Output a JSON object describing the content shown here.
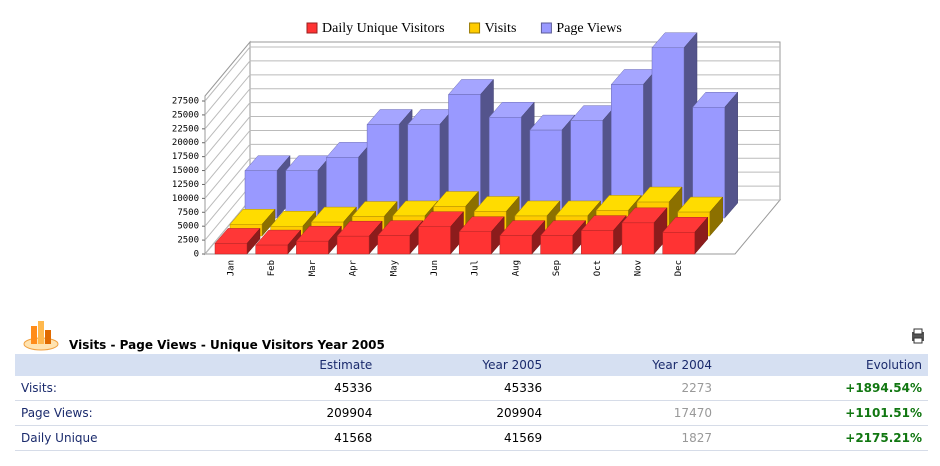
{
  "chart_data": {
    "type": "bar3d",
    "categories": [
      "Jan",
      "Feb",
      "Mar",
      "Apr",
      "May",
      "Jun",
      "Jul",
      "Aug",
      "Sep",
      "Oct",
      "Nov",
      "Dec"
    ],
    "series": [
      {
        "name": "Daily Unique Visitors",
        "color": "#ff3333",
        "values": [
          1900,
          1600,
          2300,
          3200,
          3300,
          4900,
          4000,
          3300,
          3300,
          4200,
          5600,
          3900
        ]
      },
      {
        "name": "Visits",
        "color": "#ffcc00",
        "values": [
          2100,
          1750,
          2500,
          3500,
          3600,
          5300,
          4400,
          3600,
          3600,
          4600,
          6100,
          4300
        ]
      },
      {
        "name": "Page Views",
        "color": "#9999ff",
        "values": [
          8500,
          8500,
          10900,
          16800,
          16800,
          22200,
          18100,
          15800,
          17500,
          24000,
          30600,
          19900
        ]
      }
    ],
    "ylim": [
      0,
      27500
    ],
    "yticks": [
      0,
      2500,
      5000,
      7500,
      10000,
      12500,
      15000,
      17500,
      20000,
      22500,
      25000,
      27500
    ],
    "grid": true,
    "legend": "top"
  },
  "table": {
    "title": "Visits - Page Views - Unique Visitors Year 2005",
    "columns": [
      "Estimate",
      "Year 2005",
      "Year 2004",
      "Evolution"
    ],
    "rows": [
      {
        "label": "Visits:",
        "cells": [
          45336,
          45336,
          2273,
          "+1894.54%"
        ]
      },
      {
        "label": "Page Views:",
        "cells": [
          209904,
          209904,
          17470,
          "+1101.51%"
        ]
      },
      {
        "label": "Daily Unique",
        "cells": [
          41568,
          41569,
          1827,
          "+2175.21%"
        ]
      }
    ]
  }
}
